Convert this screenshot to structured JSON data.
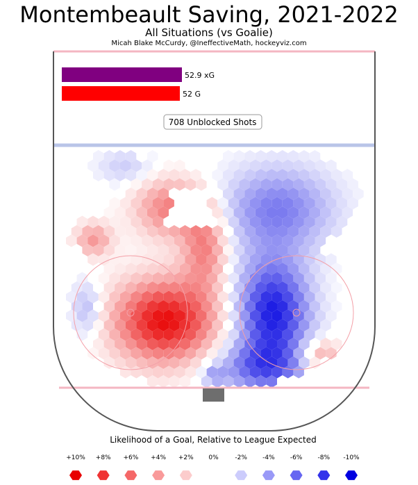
{
  "header": {
    "title": "Montembeault Saving, 2021-2022",
    "subtitle": "All Situations (vs Goalie)",
    "credit": "Micah Blake McCurdy, @IneffectiveMath, hockeyviz.com"
  },
  "chart_data": {
    "type": "heatmap",
    "title": "Montembeault Saving, 2021-2022",
    "subtitle": "All Situations (vs Goalie)",
    "summary_bars": [
      {
        "value": 52.9,
        "label": "52.9 xG",
        "color": "#800080"
      },
      {
        "value": 52,
        "label": "52 G",
        "color": "#ff0000"
      }
    ],
    "shots_label": "708 Unblocked Shots",
    "legend": {
      "title": "Likelihood of a Goal, Relative to League Expected",
      "items": [
        {
          "label": "+10%",
          "value": 10,
          "color": "#e80000"
        },
        {
          "label": "+8%",
          "value": 8,
          "color": "#ef3434"
        },
        {
          "label": "+6%",
          "value": 6,
          "color": "#f56868"
        },
        {
          "label": "+4%",
          "value": 4,
          "color": "#f99a9a"
        },
        {
          "label": "+2%",
          "value": 2,
          "color": "#fccccc"
        },
        {
          "label": "0%",
          "value": 0,
          "color": "#ffffff"
        },
        {
          "label": "-2%",
          "value": -2,
          "color": "#ccccfc"
        },
        {
          "label": "-4%",
          "value": -4,
          "color": "#9999f7"
        },
        {
          "label": "-6%",
          "value": -6,
          "color": "#6666f1"
        },
        {
          "label": "-8%",
          "value": -8,
          "color": "#3333ea"
        },
        {
          "label": "-10%",
          "value": -10,
          "color": "#0000e0"
        }
      ]
    },
    "regions": [
      {
        "name": "left-faceoff-circle",
        "peak": 9.5
      },
      {
        "name": "left-upper-slot",
        "peak": 5
      },
      {
        "name": "center-slot",
        "peak": 5
      },
      {
        "name": "far-left-point",
        "peak": 4
      },
      {
        "name": "right-faceoff-circle",
        "peak": -9
      },
      {
        "name": "right-upper",
        "peak": -5
      },
      {
        "name": "right-lower",
        "peak": -5
      },
      {
        "name": "left-edge-lower",
        "peak": -3
      },
      {
        "name": "top-left-edge",
        "peak": -2
      },
      {
        "name": "right-bottom-corner",
        "peak": 4
      },
      {
        "name": "crease",
        "peak": -3
      }
    ]
  }
}
